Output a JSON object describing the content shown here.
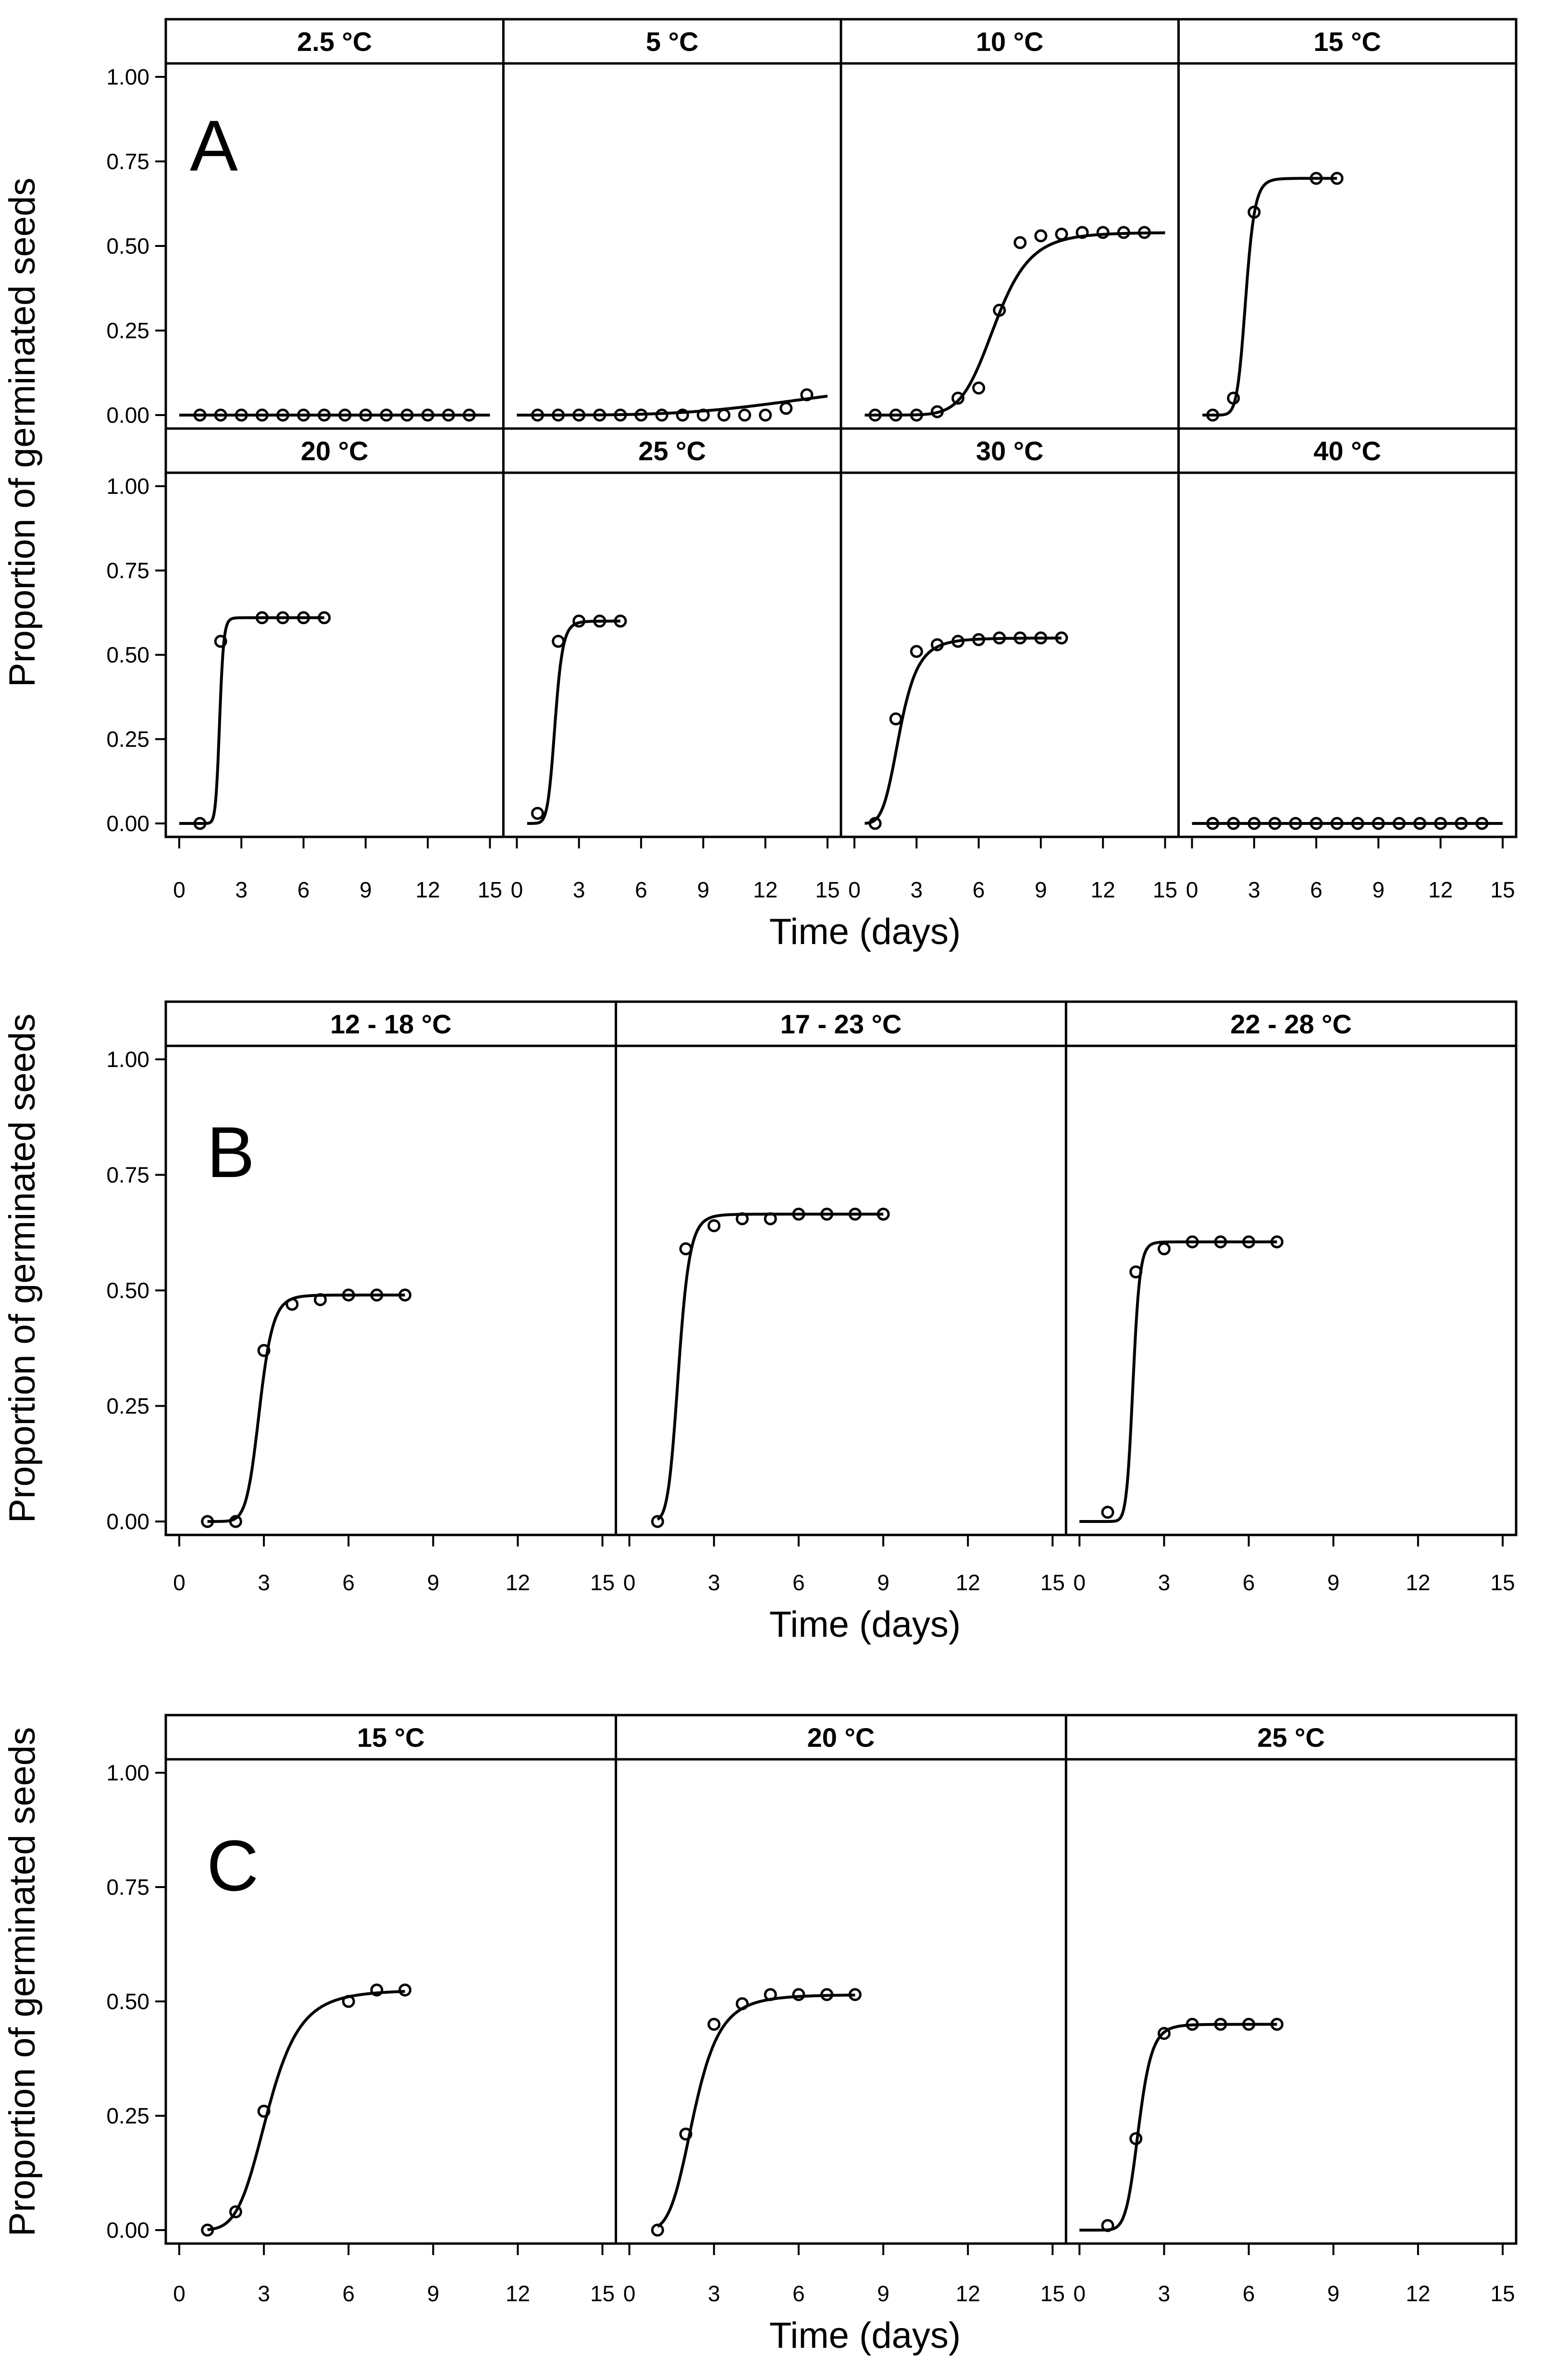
{
  "chart_data": [
    {
      "type": "line",
      "figure_label": "A",
      "xlabel": "Time (days)",
      "ylabel": "Proportion of germinated seeds",
      "xlim": [
        0,
        15
      ],
      "ylim": [
        0,
        1
      ],
      "xticks": [
        "0",
        "3",
        "6",
        "9",
        "12",
        "15"
      ],
      "yticks": [
        "0.00",
        "0.25",
        "0.50",
        "0.75",
        "1.00"
      ],
      "panels": [
        {
          "label": "2.5 °C",
          "curve": {
            "d": 0.0,
            "b": 4,
            "e": 30,
            "x0": 0,
            "x1": 15
          },
          "x": [
            1,
            2,
            3,
            4,
            5,
            6,
            7,
            8,
            9,
            10,
            11,
            12,
            13,
            14
          ],
          "y": [
            0,
            0,
            0,
            0,
            0,
            0,
            0,
            0,
            0,
            0,
            0,
            0,
            0,
            0
          ]
        },
        {
          "label": "5 °C",
          "curve": {
            "d": 0.12,
            "b": 4,
            "e": 15.5,
            "x0": 0,
            "x1": 15
          },
          "x": [
            1,
            2,
            3,
            4,
            5,
            6,
            7,
            8,
            9,
            10,
            11,
            12,
            13,
            14
          ],
          "y": [
            0,
            0,
            0,
            0,
            0,
            0,
            0,
            0,
            0,
            0,
            0,
            0,
            0.02,
            0.06
          ]
        },
        {
          "label": "10 °C",
          "curve": {
            "d": 0.54,
            "b": 8,
            "e": 6.8,
            "x0": 0.5,
            "x1": 15
          },
          "x": [
            1,
            2,
            3,
            4,
            5,
            6,
            7,
            8,
            9,
            10,
            11,
            12,
            13,
            14
          ],
          "y": [
            0,
            0,
            0,
            0.01,
            0.05,
            0.08,
            0.31,
            0.51,
            0.53,
            0.535,
            0.54,
            0.54,
            0.54,
            0.54
          ]
        },
        {
          "label": "15 °C",
          "curve": {
            "d": 0.7,
            "b": 12,
            "e": 2.6,
            "x0": 0.5,
            "x1": 7
          },
          "x": [
            1,
            2,
            3,
            6,
            7
          ],
          "y": [
            0,
            0.05,
            0.6,
            0.7,
            0.7
          ]
        },
        {
          "label": "20 °C",
          "curve": {
            "d": 0.61,
            "b": 20,
            "e": 1.95,
            "x0": 0,
            "x1": 7
          },
          "x": [
            1,
            2,
            4,
            5,
            6,
            7
          ],
          "y": [
            0,
            0.54,
            0.61,
            0.61,
            0.61,
            0.61
          ]
        },
        {
          "label": "25 °C",
          "curve": {
            "d": 0.6,
            "b": 10,
            "e": 1.85,
            "x0": 0.5,
            "x1": 5
          },
          "x": [
            1,
            2,
            3,
            4,
            5
          ],
          "y": [
            0.03,
            0.54,
            0.6,
            0.6,
            0.6
          ]
        },
        {
          "label": "30 °C",
          "curve": {
            "d": 0.55,
            "b": 5,
            "e": 2.2,
            "x0": 0.5,
            "x1": 10
          },
          "x": [
            1,
            2,
            3,
            4,
            5,
            6,
            7,
            8,
            9,
            10
          ],
          "y": [
            0,
            0.31,
            0.51,
            0.53,
            0.54,
            0.545,
            0.55,
            0.55,
            0.55,
            0.55
          ]
        },
        {
          "label": "40 °C",
          "curve": {
            "d": 0.0,
            "b": 4,
            "e": 30,
            "x0": 0,
            "x1": 15
          },
          "x": [
            1,
            2,
            3,
            4,
            5,
            6,
            7,
            8,
            9,
            10,
            11,
            12,
            13,
            14
          ],
          "y": [
            0,
            0,
            0,
            0,
            0,
            0,
            0,
            0,
            0,
            0,
            0,
            0,
            0,
            0
          ]
        }
      ]
    },
    {
      "type": "line",
      "figure_label": "B",
      "xlabel": "Time (days)",
      "ylabel": "Proportion of germinated seeds",
      "xlim": [
        0,
        15
      ],
      "ylim": [
        0,
        1
      ],
      "xticks": [
        "0",
        "3",
        "6",
        "9",
        "12",
        "15"
      ],
      "yticks": [
        "0.00",
        "0.25",
        "0.50",
        "0.75",
        "1.00"
      ],
      "panels": [
        {
          "label": "12 - 18 °C",
          "curve": {
            "d": 0.49,
            "b": 12,
            "e": 2.85,
            "x0": 1,
            "x1": 8
          },
          "x": [
            1,
            2,
            3,
            4,
            5,
            6,
            7,
            8
          ],
          "y": [
            0,
            0,
            0.37,
            0.47,
            0.48,
            0.49,
            0.49,
            0.49
          ]
        },
        {
          "label": "17 - 23 °C",
          "curve": {
            "d": 0.665,
            "b": 9,
            "e": 1.75,
            "x0": 1,
            "x1": 9
          },
          "x": [
            1,
            2,
            3,
            4,
            5,
            6,
            7,
            8,
            9
          ],
          "y": [
            0,
            0.59,
            0.64,
            0.655,
            0.655,
            0.665,
            0.665,
            0.665,
            0.665
          ]
        },
        {
          "label": "22 - 28 °C",
          "curve": {
            "d": 0.605,
            "b": 16,
            "e": 1.9,
            "x0": 0,
            "x1": 7
          },
          "x": [
            1,
            2,
            3,
            4,
            5,
            6,
            7
          ],
          "y": [
            0.02,
            0.54,
            0.59,
            0.605,
            0.605,
            0.605,
            0.605
          ]
        }
      ]
    },
    {
      "type": "line",
      "figure_label": "C",
      "xlabel": "Time (days)",
      "ylabel": "Proportion of germinated seeds",
      "xlim": [
        0,
        15
      ],
      "ylim": [
        0,
        1
      ],
      "xticks": [
        "0",
        "3",
        "6",
        "9",
        "12",
        "15"
      ],
      "yticks": [
        "0.00",
        "0.25",
        "0.50",
        "0.75",
        "1.00"
      ],
      "panels": [
        {
          "label": "15 °C",
          "curve": {
            "d": 0.525,
            "b": 5.5,
            "e": 3.15,
            "x0": 1,
            "x1": 8
          },
          "x": [
            1,
            2,
            3,
            6,
            7,
            8
          ],
          "y": [
            0,
            0.04,
            0.26,
            0.5,
            0.525,
            0.525
          ]
        },
        {
          "label": "20 °C",
          "curve": {
            "d": 0.515,
            "b": 5,
            "e": 2.3,
            "x0": 1,
            "x1": 8
          },
          "x": [
            1,
            2,
            3,
            4,
            5,
            6,
            7,
            8
          ],
          "y": [
            0,
            0.21,
            0.45,
            0.495,
            0.515,
            0.515,
            0.515,
            0.515
          ]
        },
        {
          "label": "25 °C",
          "curve": {
            "d": 0.45,
            "b": 9,
            "e": 2.1,
            "x0": 0,
            "x1": 7
          },
          "x": [
            1,
            2,
            3,
            4,
            5,
            6,
            7
          ],
          "y": [
            0.01,
            0.2,
            0.43,
            0.45,
            0.45,
            0.45,
            0.45
          ]
        }
      ]
    }
  ]
}
